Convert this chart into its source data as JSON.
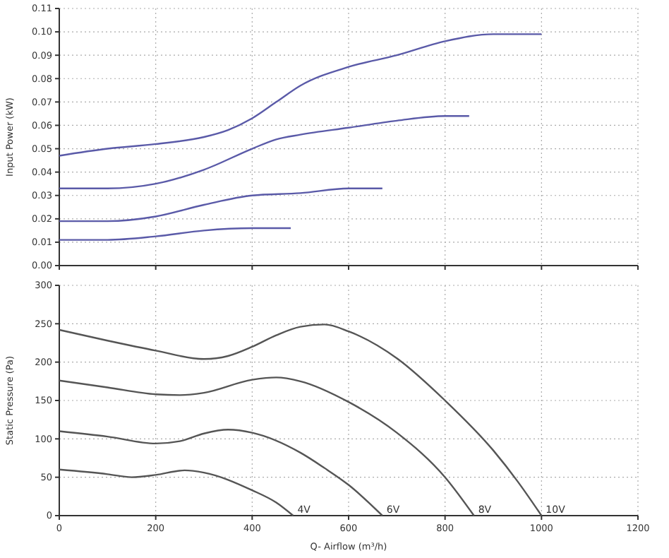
{
  "chart_data": [
    {
      "type": "line",
      "ylabel": "Input Power (kW)",
      "xlim": [
        0,
        1200
      ],
      "xticks": [
        0,
        200,
        400,
        600,
        800,
        1000,
        1200
      ],
      "ylim": [
        0,
        0.11
      ],
      "yticks": [
        {
          "value": 0,
          "label": "0.00"
        },
        {
          "value": 0.01,
          "label": "0.01"
        },
        {
          "value": 0.02,
          "label": "0.02"
        },
        {
          "value": 0.03,
          "label": "0.03"
        },
        {
          "value": 0.04,
          "label": "0.04"
        },
        {
          "value": 0.05,
          "label": "0.05"
        },
        {
          "value": 0.06,
          "label": "0.06"
        },
        {
          "value": 0.07,
          "label": "0.07"
        },
        {
          "value": 0.08,
          "label": "0.08"
        },
        {
          "value": 0.09,
          "label": "0.09"
        },
        {
          "value": 0.1,
          "label": "0.10"
        },
        {
          "value": 0.11,
          "label": "0.11"
        }
      ],
      "tick_labels": "y",
      "grid": true,
      "line_style": "solid",
      "series": [
        {
          "color": "#5a5aa8",
          "x": [
            0,
            100,
            200,
            300,
            350,
            400,
            450,
            500,
            600,
            700,
            800,
            900,
            1000
          ],
          "values": [
            0.047,
            0.05,
            0.052,
            0.055,
            0.058,
            0.063,
            0.07,
            0.077,
            0.085,
            0.09,
            0.096,
            0.099,
            0.099
          ]
        },
        {
          "color": "#5a5aa8",
          "x": [
            0,
            100,
            200,
            300,
            400,
            450,
            500,
            600,
            700,
            800,
            850
          ],
          "values": [
            0.033,
            0.033,
            0.035,
            0.041,
            0.05,
            0.054,
            0.056,
            0.059,
            0.062,
            0.064,
            0.064
          ]
        },
        {
          "color": "#5a5aa8",
          "x": [
            0,
            100,
            200,
            300,
            400,
            500,
            600,
            670
          ],
          "values": [
            0.019,
            0.019,
            0.021,
            0.026,
            0.03,
            0.031,
            0.033,
            0.033
          ]
        },
        {
          "color": "#5a5aa8",
          "x": [
            0,
            100,
            200,
            300,
            400,
            480
          ],
          "values": [
            0.011,
            0.011,
            0.0125,
            0.015,
            0.016,
            0.016
          ]
        }
      ]
    },
    {
      "type": "line",
      "xlabel": "Q- Airflow (m³/h)",
      "ylabel": "Static Pressure (Pa)",
      "xlim": [
        0,
        1200
      ],
      "xticks": [
        0,
        200,
        400,
        600,
        800,
        1000,
        1200
      ],
      "ylim": [
        0,
        300
      ],
      "yticks": [
        0,
        50,
        100,
        150,
        200,
        250,
        300
      ],
      "grid": true,
      "line_style": "solid",
      "series": [
        {
          "name": "10V",
          "color": "#555555",
          "x": [
            0,
            100,
            200,
            300,
            350,
            400,
            450,
            500,
            550,
            600,
            700,
            800,
            900,
            950,
            1000
          ],
          "values": [
            242,
            228,
            215,
            204,
            208,
            220,
            235,
            246,
            249,
            240,
            205,
            150,
            85,
            45,
            0
          ]
        },
        {
          "name": "8V",
          "color": "#555555",
          "x": [
            0,
            100,
            200,
            250,
            300,
            400,
            450,
            500,
            600,
            700,
            800,
            860
          ],
          "values": [
            176,
            167,
            158,
            157,
            160,
            177,
            180,
            175,
            148,
            108,
            50,
            0
          ]
        },
        {
          "name": "6V",
          "color": "#555555",
          "x": [
            0,
            100,
            200,
            250,
            300,
            350,
            400,
            500,
            550,
            600,
            670
          ],
          "values": [
            110,
            103,
            94,
            97,
            107,
            112,
            108,
            82,
            62,
            40,
            0
          ]
        },
        {
          "name": "4V",
          "color": "#555555",
          "x": [
            0,
            100,
            150,
            200,
            260,
            300,
            400,
            450,
            485
          ],
          "values": [
            60,
            54,
            50,
            53,
            59,
            56,
            33,
            17,
            0
          ]
        }
      ]
    }
  ]
}
